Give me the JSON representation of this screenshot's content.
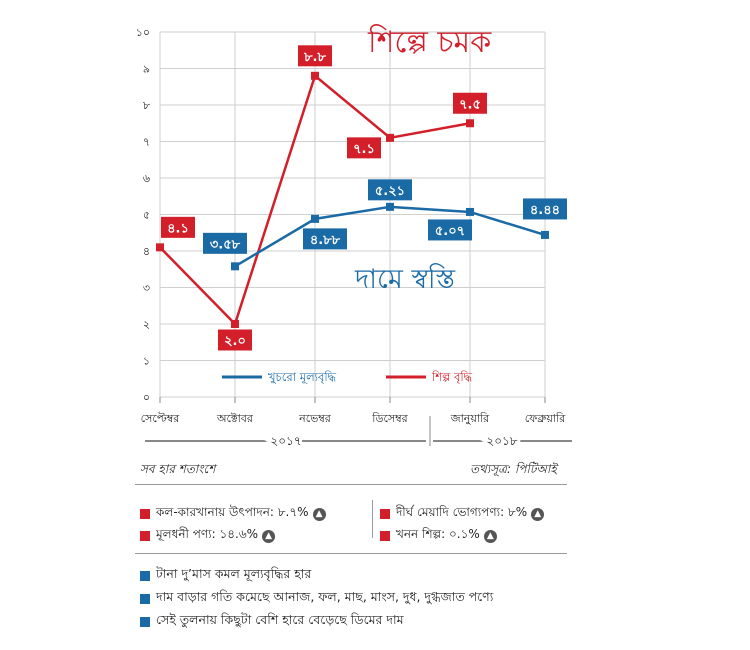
{
  "colors": {
    "industry": "#d21f2a",
    "retail": "#1a6aa6",
    "grid": "#cfcfcf",
    "axis": "#888888"
  },
  "chart_data": {
    "type": "line",
    "categories": [
      "সেপ্টেম্বর",
      "অক্টোবর",
      "নভেম্বর",
      "ডিসেম্বর",
      "জানুয়ারি",
      "ফেব্রুয়ারি"
    ],
    "ylim": [
      0,
      10
    ],
    "yticks": [
      "০",
      "১",
      "২",
      "৩",
      "৪",
      "৫",
      "৬",
      "৭",
      "৮",
      "৯",
      "১০"
    ],
    "series": [
      {
        "name": "শিল্প বৃদ্ধি",
        "key": "industry",
        "values": [
          4.1,
          2.0,
          8.8,
          7.1,
          7.5,
          null
        ],
        "labels": [
          "৪.১",
          "২.০",
          "৮.৮",
          "৭.১",
          "৭.৫",
          ""
        ]
      },
      {
        "name": "খুচরো মূল্যবৃদ্ধি",
        "key": "retail",
        "values": [
          null,
          3.58,
          4.88,
          5.21,
          5.07,
          4.44
        ],
        "labels": [
          "",
          "৩.৫৮",
          "৪.৮৮",
          "৫.২১",
          "৫.০৭",
          "৪.৪৪"
        ]
      }
    ],
    "title_industry": "শিল্পে চমক",
    "title_retail": "দামে স্বস্তি",
    "year_groups": [
      "২০১৭",
      "২০১৮"
    ],
    "grid": true,
    "legend_position": "bottom-center"
  },
  "notes": {
    "unit": "সব হার শতাংশে",
    "source": "তথ্যসূত্র: পিটিআই"
  },
  "stats": [
    {
      "label": "কল-কারখানায় উৎপাদন: ৮.৭%",
      "icon": "up-arrow-icon"
    },
    {
      "label": "দীর্ঘ মেয়াদি ভোগ্যপণ্য: ৮%",
      "icon": "up-arrow-icon"
    },
    {
      "label": "মূলধনী পণ্য: ১৪.৬%",
      "icon": "up-arrow-icon"
    },
    {
      "label": "খনন শিল্প: ০.১%",
      "icon": "up-arrow-icon"
    }
  ],
  "bullets": [
    "টানা দু’মাস কমল মূল্যবৃদ্ধির হার",
    "দাম বাড়ার গতি কমেছে আনাজ, ফল, মাছ, মাংস, দুধ, দুগ্ধজাত পণ্যে",
    "সেই তুলনায় কিছুটা বেশি হারে বেড়েছে ডিমের দাম"
  ]
}
